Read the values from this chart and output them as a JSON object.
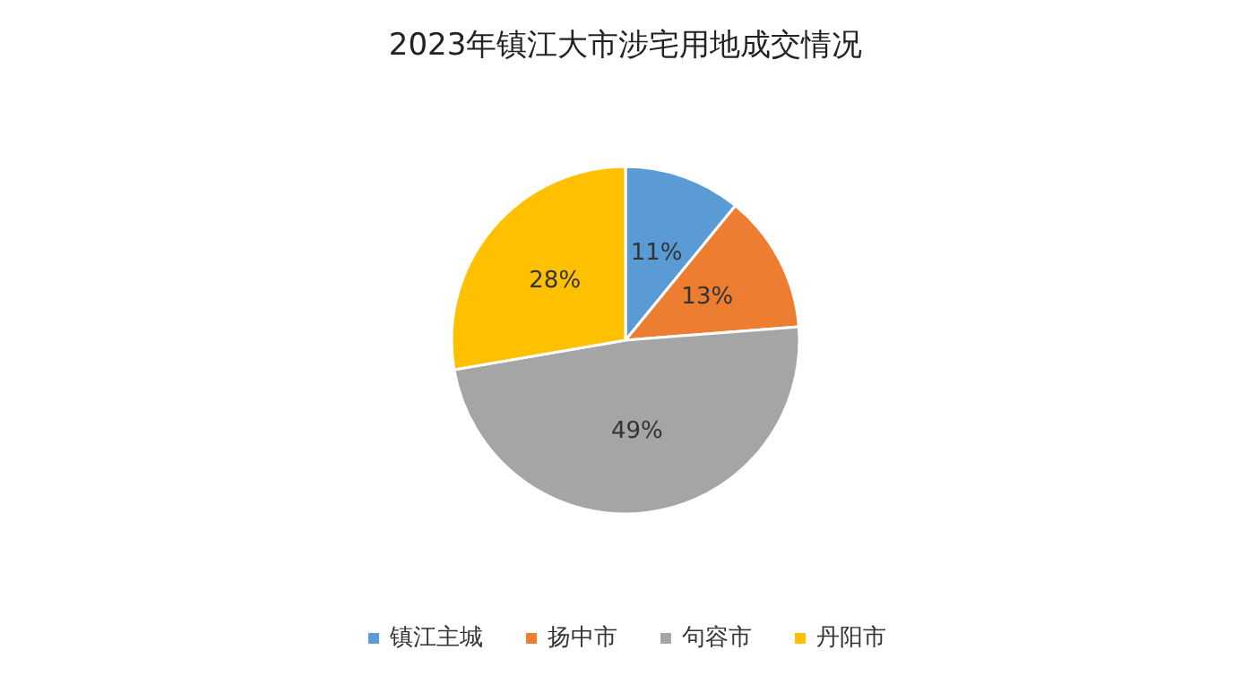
{
  "chart_data": {
    "type": "pie",
    "title": "2023年镇江大市涉宅用地成交情况",
    "categories": [
      "镇江主城",
      "扬中市",
      "句容市",
      "丹阳市"
    ],
    "values": [
      11,
      13,
      49,
      28
    ],
    "value_labels": [
      "11%",
      "13%",
      "49%",
      "28%"
    ],
    "colors": [
      "#5b9bd5",
      "#ed7d31",
      "#a5a5a5",
      "#ffc000"
    ],
    "legend": "bottom"
  }
}
